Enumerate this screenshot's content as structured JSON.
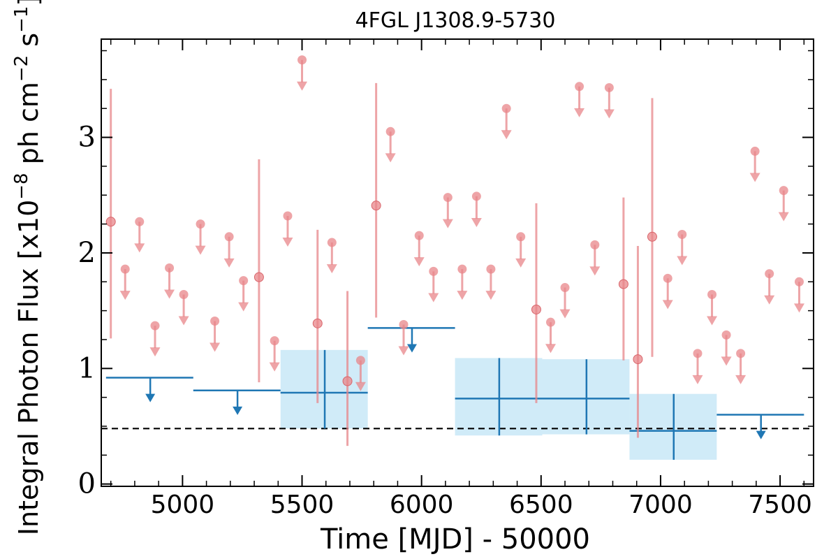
{
  "chart_data": {
    "type": "scatter",
    "title": "4FGL J1308.9-5730",
    "xlabel": "Time [MJD] - 50000",
    "ylabel": "Integral Photon Flux [x10",
    "ylabel_exp": "−8",
    "ylabel_mid": " ph cm",
    "ylabel_exp2": "−2",
    "ylabel_mid2": " s",
    "ylabel_exp3": "−1",
    "ylabel_end": "]",
    "xlim": [
      4660,
      7640
    ],
    "ylim": [
      -0.02,
      3.85
    ],
    "xticks": [
      5000,
      5500,
      6000,
      6500,
      7000,
      7500
    ],
    "xtick_labels": [
      "5000",
      "5500",
      "6000",
      "6500",
      "7000",
      "7500"
    ],
    "xminor_step": 100,
    "yticks": [
      0,
      1,
      2,
      3
    ],
    "ytick_labels": [
      "0",
      "1",
      "2",
      "3"
    ],
    "yminor_step": 0.25,
    "grid": false,
    "colors": {
      "monthly": "#e8868a",
      "yearly": "#1f77b4",
      "yearly_band": "#cdeaf8",
      "reference_line": "#000000"
    },
    "reference_line": {
      "y": 0.48,
      "style": "dashed"
    },
    "series": [
      {
        "detections": [
          {
            "x": 4700,
            "y": 2.27,
            "ylo": 1.26,
            "yhi": 3.42
          },
          {
            "x": 5320,
            "y": 1.79,
            "ylo": 0.88,
            "yhi": 2.81
          },
          {
            "x": 5565,
            "y": 1.39,
            "ylo": 0.7,
            "yhi": 2.2
          },
          {
            "x": 5690,
            "y": 0.89,
            "ylo": 0.33,
            "yhi": 1.67
          },
          {
            "x": 5810,
            "y": 2.41,
            "ylo": 1.44,
            "yhi": 3.47
          },
          {
            "x": 6480,
            "y": 1.51,
            "ylo": 0.7,
            "yhi": 2.43
          },
          {
            "x": 6845,
            "y": 1.73,
            "ylo": 1.07,
            "yhi": 2.48
          },
          {
            "x": 6905,
            "y": 1.08,
            "ylo": 0.4,
            "yhi": 2.06
          },
          {
            "x": 6965,
            "y": 2.14,
            "ylo": 1.1,
            "yhi": 3.34
          }
        ],
        "upper_limits": [
          {
            "x": 4760,
            "y": 1.86
          },
          {
            "x": 4820,
            "y": 2.27
          },
          {
            "x": 4885,
            "y": 1.37
          },
          {
            "x": 4945,
            "y": 1.87
          },
          {
            "x": 5005,
            "y": 1.64
          },
          {
            "x": 5075,
            "y": 2.25
          },
          {
            "x": 5135,
            "y": 1.41
          },
          {
            "x": 5195,
            "y": 2.14
          },
          {
            "x": 5255,
            "y": 1.76
          },
          {
            "x": 5385,
            "y": 1.24
          },
          {
            "x": 5440,
            "y": 2.32
          },
          {
            "x": 5500,
            "y": 3.67
          },
          {
            "x": 5625,
            "y": 2.09
          },
          {
            "x": 5745,
            "y": 1.07
          },
          {
            "x": 5870,
            "y": 3.05
          },
          {
            "x": 5925,
            "y": 1.38
          },
          {
            "x": 5990,
            "y": 2.15
          },
          {
            "x": 6050,
            "y": 1.84
          },
          {
            "x": 6110,
            "y": 2.48
          },
          {
            "x": 6170,
            "y": 1.86
          },
          {
            "x": 6230,
            "y": 2.49
          },
          {
            "x": 6290,
            "y": 1.86
          },
          {
            "x": 6355,
            "y": 3.25
          },
          {
            "x": 6415,
            "y": 2.14
          },
          {
            "x": 6540,
            "y": 1.4
          },
          {
            "x": 6600,
            "y": 1.7
          },
          {
            "x": 6660,
            "y": 3.44
          },
          {
            "x": 6725,
            "y": 2.07
          },
          {
            "x": 6785,
            "y": 3.43
          },
          {
            "x": 7030,
            "y": 1.78
          },
          {
            "x": 7090,
            "y": 2.16
          },
          {
            "x": 7155,
            "y": 1.13
          },
          {
            "x": 7215,
            "y": 1.64
          },
          {
            "x": 7275,
            "y": 1.29
          },
          {
            "x": 7335,
            "y": 1.13
          },
          {
            "x": 7395,
            "y": 2.88
          },
          {
            "x": 7455,
            "y": 1.82
          },
          {
            "x": 7515,
            "y": 2.54
          },
          {
            "x": 7580,
            "y": 1.75
          }
        ]
      },
      {
        "detections": [
          {
            "x": 5595,
            "xlo": 5410,
            "xhi": 5775,
            "y": 0.79,
            "ylo": 0.48,
            "yhi": 1.16
          },
          {
            "x": 6325,
            "xlo": 6140,
            "xhi": 6505,
            "y": 0.74,
            "ylo": 0.42,
            "yhi": 1.09
          },
          {
            "x": 6690,
            "xlo": 6505,
            "xhi": 6870,
            "y": 0.74,
            "ylo": 0.43,
            "yhi": 1.08
          },
          {
            "x": 7055,
            "xlo": 6870,
            "xhi": 7235,
            "y": 0.46,
            "ylo": 0.21,
            "yhi": 0.78
          }
        ],
        "upper_limits": [
          {
            "x": 4865,
            "xlo": 4680,
            "xhi": 5045,
            "y": 0.92
          },
          {
            "x": 5230,
            "xlo": 5045,
            "xhi": 5410,
            "y": 0.81
          },
          {
            "x": 5960,
            "xlo": 5775,
            "xhi": 6140,
            "y": 1.35
          },
          {
            "x": 7420,
            "xlo": 7235,
            "xhi": 7600,
            "y": 0.6
          }
        ]
      }
    ]
  }
}
